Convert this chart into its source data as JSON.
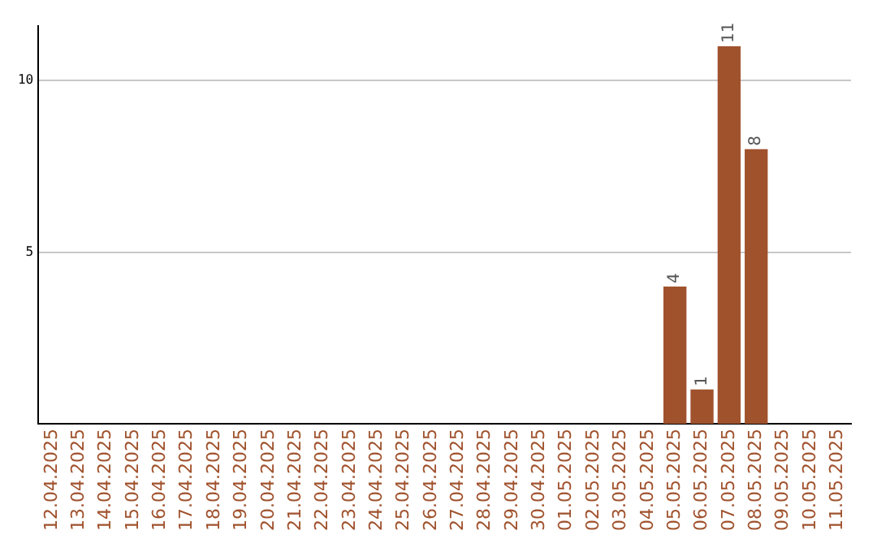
{
  "chart_data": {
    "type": "bar",
    "categories": [
      "12.04.2025",
      "13.04.2025",
      "14.04.2025",
      "15.04.2025",
      "16.04.2025",
      "17.04.2025",
      "18.04.2025",
      "19.04.2025",
      "20.04.2025",
      "21.04.2025",
      "22.04.2025",
      "23.04.2025",
      "24.04.2025",
      "25.04.2025",
      "26.04.2025",
      "27.04.2025",
      "28.04.2025",
      "29.04.2025",
      "30.04.2025",
      "01.05.2025",
      "02.05.2025",
      "03.05.2025",
      "04.05.2025",
      "05.05.2025",
      "06.05.2025",
      "07.05.2025",
      "08.05.2025",
      "09.05.2025",
      "10.05.2025",
      "11.05.2025"
    ],
    "values": [
      0,
      0,
      0,
      0,
      0,
      0,
      0,
      0,
      0,
      0,
      0,
      0,
      0,
      0,
      0,
      0,
      0,
      0,
      0,
      0,
      0,
      0,
      0,
      4,
      1,
      11,
      8,
      0,
      0,
      0
    ],
    "value_labels": [
      null,
      null,
      null,
      null,
      null,
      null,
      null,
      null,
      null,
      null,
      null,
      null,
      null,
      null,
      null,
      null,
      null,
      null,
      null,
      null,
      null,
      null,
      null,
      "4",
      "1",
      "11",
      "8",
      null,
      null,
      null
    ],
    "color": "#a0522d",
    "ylim": [
      0,
      11.6
    ],
    "yticks": [
      5,
      10
    ],
    "grid": "y",
    "legend": false
  }
}
